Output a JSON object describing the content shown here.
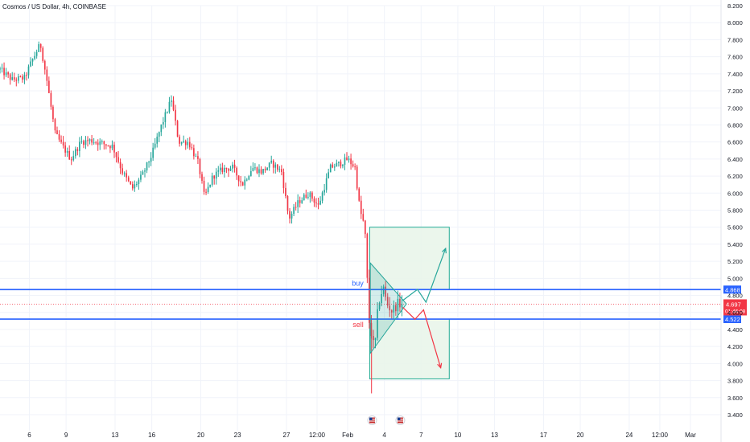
{
  "chart_data": {
    "type": "candlestick",
    "title": "Cosmos / US Dollar, 4h, COINBASE",
    "y_ticks": [
      "3.400",
      "3.600",
      "3.800",
      "4.000",
      "4.200",
      "4.400",
      "4.600",
      "4.800",
      "5.000",
      "5.200",
      "5.400",
      "5.600",
      "5.800",
      "6.000",
      "6.200",
      "6.400",
      "6.600",
      "6.800",
      "7.000",
      "7.200",
      "7.400",
      "7.600",
      "7.800",
      "8.000",
      "8.200"
    ],
    "ylim": [
      3.4,
      8.2
    ],
    "x_ticks": [
      {
        "label": "6",
        "day": 6
      },
      {
        "label": "9",
        "day": 9
      },
      {
        "label": "13",
        "day": 13
      },
      {
        "label": "16",
        "day": 16
      },
      {
        "label": "20",
        "day": 20
      },
      {
        "label": "23",
        "day": 23
      },
      {
        "label": "27",
        "day": 27
      },
      {
        "label": "12:00",
        "day": 29.5
      },
      {
        "label": "Feb",
        "day": 32
      },
      {
        "label": "4",
        "day": 35
      },
      {
        "label": "7",
        "day": 38
      },
      {
        "label": "10",
        "day": 41
      },
      {
        "label": "13",
        "day": 44
      },
      {
        "label": "17",
        "day": 48
      },
      {
        "label": "20",
        "day": 51
      },
      {
        "label": "24",
        "day": 55
      },
      {
        "label": "12:00",
        "day": 57.5
      },
      {
        "label": "Mar",
        "day": 60
      }
    ],
    "xlim": [
      3.6,
      62.5
    ],
    "price_path": [
      [
        3.6,
        7.45
      ],
      [
        4.6,
        7.33
      ],
      [
        5.6,
        7.35
      ],
      [
        6.2,
        7.55
      ],
      [
        6.9,
        7.75
      ],
      [
        7.4,
        7.35
      ],
      [
        8.1,
        6.7
      ],
      [
        8.7,
        6.55
      ],
      [
        9.4,
        6.4
      ],
      [
        10.2,
        6.6
      ],
      [
        11.0,
        6.62
      ],
      [
        12.0,
        6.58
      ],
      [
        12.8,
        6.55
      ],
      [
        13.6,
        6.25
      ],
      [
        14.4,
        6.05
      ],
      [
        15.2,
        6.2
      ],
      [
        16.0,
        6.45
      ],
      [
        16.8,
        6.8
      ],
      [
        17.6,
        7.1
      ],
      [
        18.2,
        6.6
      ],
      [
        19.0,
        6.6
      ],
      [
        19.8,
        6.35
      ],
      [
        20.3,
        5.95
      ],
      [
        21.0,
        6.2
      ],
      [
        21.8,
        6.28
      ],
      [
        22.6,
        6.3
      ],
      [
        23.4,
        6.1
      ],
      [
        24.2,
        6.3
      ],
      [
        25.0,
        6.25
      ],
      [
        25.8,
        6.35
      ],
      [
        26.6,
        6.25
      ],
      [
        27.2,
        5.7
      ],
      [
        28.0,
        5.9
      ],
      [
        28.8,
        6.0
      ],
      [
        29.6,
        5.85
      ],
      [
        30.6,
        6.3
      ],
      [
        31.4,
        6.35
      ],
      [
        32.0,
        6.4
      ],
      [
        32.6,
        6.3
      ],
      [
        33.0,
        5.8
      ],
      [
        33.4,
        5.6
      ],
      [
        33.75,
        4.5
      ],
      [
        34.2,
        4.15
      ],
      [
        34.5,
        4.7
      ],
      [
        34.9,
        4.9
      ],
      [
        35.2,
        4.7
      ],
      [
        35.6,
        4.62
      ],
      [
        36.1,
        4.7
      ],
      [
        36.5,
        4.697
      ]
    ],
    "levels": [
      {
        "label": "buy",
        "value": 4.868,
        "price_text": "4.868"
      },
      {
        "label": "sell",
        "value": 4.522,
        "price_text": "4.522"
      }
    ],
    "current_price": {
      "value": 4.697,
      "price_text": "4.697",
      "countdown": "01:46:08"
    },
    "zones": [
      {
        "name": "upper-target-zone",
        "day_from": 33.8,
        "day_to": 40.3,
        "y_from": 4.868,
        "y_to": 5.6
      },
      {
        "name": "lower-target-zone",
        "day_from": 33.8,
        "day_to": 40.3,
        "y_from": 3.82,
        "y_to": 4.522
      }
    ],
    "triangle": {
      "points": [
        [
          33.85,
          5.18
        ],
        [
          33.85,
          4.12
        ],
        [
          36.8,
          4.7
        ]
      ]
    },
    "projections": [
      {
        "name": "bullish-projection",
        "color": "#26a69a",
        "points": [
          [
            36.5,
            4.74
          ],
          [
            37.7,
            4.87
          ],
          [
            38.4,
            4.72
          ],
          [
            40.0,
            5.35
          ]
        ]
      },
      {
        "name": "bearish-projection",
        "color": "#f23645",
        "points": [
          [
            36.5,
            4.66
          ],
          [
            37.5,
            4.52
          ],
          [
            38.2,
            4.63
          ],
          [
            39.6,
            3.95
          ]
        ]
      }
    ],
    "event_markers": [
      {
        "day": 34.0
      },
      {
        "day": 36.3
      }
    ],
    "colors": {
      "up": "#26a69a",
      "down": "#f23645",
      "level_line": "#2962ff",
      "zone_fill": "#e8f5e9",
      "zone_border": "#22ab94"
    }
  }
}
